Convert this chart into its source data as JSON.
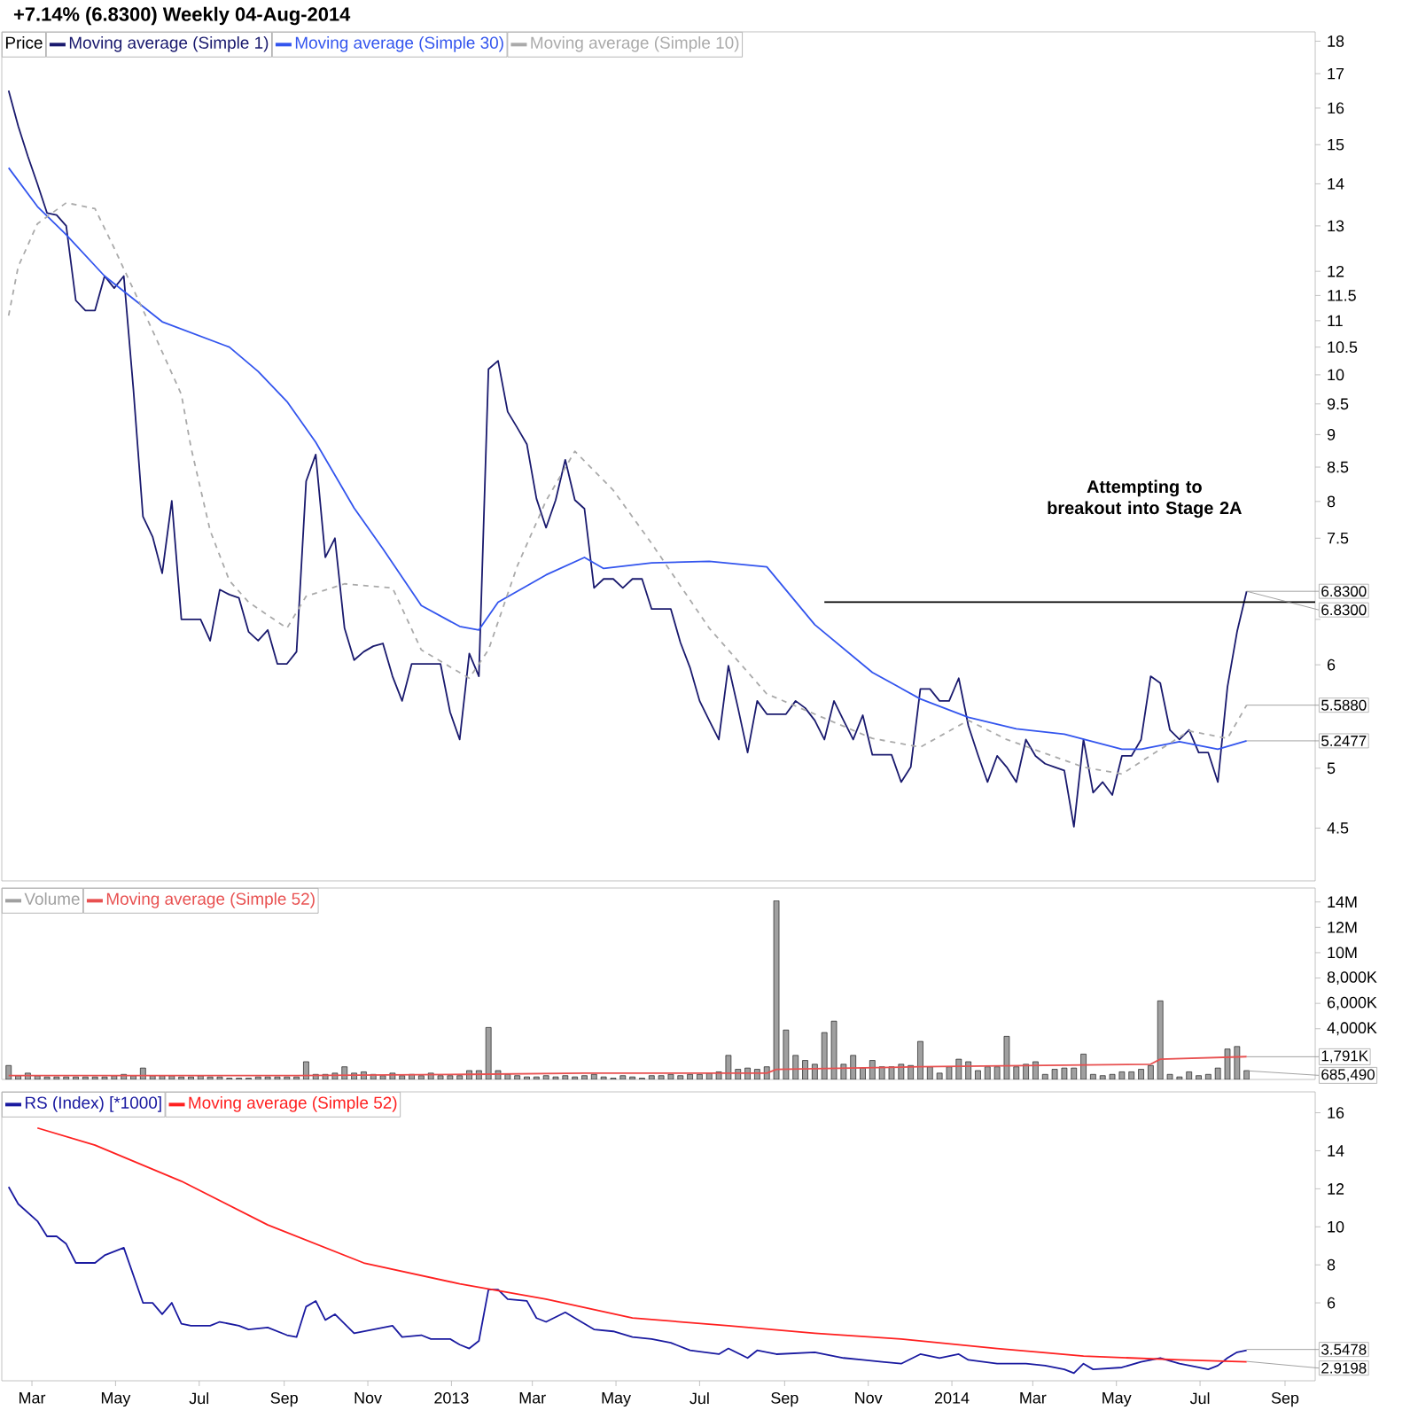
{
  "chart_data": [
    {
      "type": "line",
      "title": "+7.14% (6.8300)   Weekly   04-Aug-2014",
      "legend_title": "Price",
      "legend": "top left",
      "log": "y",
      "tick_labels": "y",
      "x": [
        "2012-02-13",
        "2012-02-20",
        "2012-02-27",
        "2012-03-05",
        "2012-03-12",
        "2012-03-19",
        "2012-03-26",
        "2012-04-02",
        "2012-04-09",
        "2012-04-16",
        "2012-04-23",
        "2012-04-30",
        "2012-05-07",
        "2012-05-14",
        "2012-05-21",
        "2012-05-28",
        "2012-06-04",
        "2012-06-11",
        "2012-06-18",
        "2012-06-25",
        "2012-07-02",
        "2012-07-09",
        "2012-07-16",
        "2012-07-23",
        "2012-07-30",
        "2012-08-06",
        "2012-08-13",
        "2012-08-20",
        "2012-08-27",
        "2012-09-03",
        "2012-09-10",
        "2012-09-17",
        "2012-09-24",
        "2012-10-01",
        "2012-10-08",
        "2012-10-15",
        "2012-10-22",
        "2012-10-29",
        "2012-11-05",
        "2012-11-12",
        "2012-11-19",
        "2012-11-26",
        "2012-12-03",
        "2012-12-10",
        "2012-12-17",
        "2012-12-24",
        "2012-12-31",
        "2013-01-07",
        "2013-01-14",
        "2013-01-21",
        "2013-01-28",
        "2013-02-04",
        "2013-02-11",
        "2013-02-18",
        "2013-02-25",
        "2013-03-04",
        "2013-03-11",
        "2013-03-18",
        "2013-03-25",
        "2013-04-01",
        "2013-04-08",
        "2013-04-15",
        "2013-04-22",
        "2013-04-29",
        "2013-05-06",
        "2013-05-13",
        "2013-05-20",
        "2013-05-27",
        "2013-06-03",
        "2013-06-10",
        "2013-06-17",
        "2013-06-24",
        "2013-07-01",
        "2013-07-08",
        "2013-07-15",
        "2013-07-22",
        "2013-07-29",
        "2013-08-05",
        "2013-08-12",
        "2013-08-19",
        "2013-08-26",
        "2013-09-02",
        "2013-09-09",
        "2013-09-16",
        "2013-09-23",
        "2013-09-30",
        "2013-10-07",
        "2013-10-14",
        "2013-10-21",
        "2013-10-28",
        "2013-11-04",
        "2013-11-11",
        "2013-11-18",
        "2013-11-25",
        "2013-12-02",
        "2013-12-09",
        "2013-12-16",
        "2013-12-23",
        "2013-12-30",
        "2014-01-06",
        "2014-01-13",
        "2014-01-20",
        "2014-01-27",
        "2014-02-03",
        "2014-02-10",
        "2014-02-17",
        "2014-02-24",
        "2014-03-03",
        "2014-03-10",
        "2014-03-17",
        "2014-03-24",
        "2014-03-31",
        "2014-04-07",
        "2014-04-14",
        "2014-04-21",
        "2014-04-28",
        "2014-05-05",
        "2014-05-12",
        "2014-05-19",
        "2014-05-26",
        "2014-06-02",
        "2014-06-09",
        "2014-06-16",
        "2014-06-23",
        "2014-06-30",
        "2014-07-07",
        "2014-07-14",
        "2014-07-21",
        "2014-07-28",
        "2014-08-04"
      ],
      "series": [
        {
          "name": "Moving average (Simple 1)",
          "color": "#1a1a6e",
          "values": [
            16.5,
            15.5,
            14.7,
            14.0,
            13.3,
            13.25,
            13.0,
            11.4,
            11.2,
            11.2,
            11.9,
            11.65,
            11.9,
            9.75,
            7.79,
            7.52,
            7.05,
            8.01,
            6.5,
            6.5,
            6.5,
            6.26,
            6.85,
            6.79,
            6.75,
            6.36,
            6.26,
            6.38,
            6.01,
            6.01,
            6.14,
            8.29,
            8.69,
            7.25,
            7.5,
            6.4,
            6.05,
            6.14,
            6.2,
            6.23,
            5.88,
            5.63,
            6.01,
            6.01,
            6.01,
            6.01,
            5.52,
            5.26,
            6.12,
            5.88,
            10.1,
            10.25,
            9.37,
            9.11,
            8.85,
            8.04,
            7.64,
            8.02,
            8.61,
            8.02,
            7.9,
            6.87,
            6.98,
            6.98,
            6.87,
            6.98,
            6.98,
            6.62,
            6.62,
            6.62,
            6.24,
            5.97,
            5.63,
            5.44,
            5.26,
            5.99,
            5.56,
            5.14,
            5.63,
            5.5,
            5.5,
            5.5,
            5.63,
            5.56,
            5.44,
            5.26,
            5.63,
            5.44,
            5.26,
            5.49,
            5.12,
            5.12,
            5.12,
            4.88,
            5.01,
            5.75,
            5.75,
            5.63,
            5.63,
            5.86,
            5.39,
            5.12,
            4.88,
            5.11,
            5.01,
            4.88,
            5.26,
            5.11,
            5.04,
            5.01,
            4.98,
            4.51,
            5.26,
            4.79,
            4.88,
            4.77,
            5.11,
            5.11,
            5.26,
            5.88,
            5.81,
            5.35,
            5.26,
            5.35,
            5.14,
            5.14,
            4.88,
            5.77,
            6.36,
            6.83
          ]
        },
        {
          "name": "Moving average (Simple 30)",
          "color": "#3355ee",
          "x": [
            "2012-02-13",
            "2012-03-05",
            "2012-03-26",
            "2012-04-23",
            "2012-06-04",
            "2012-07-23",
            "2012-08-13",
            "2012-09-03",
            "2012-09-24",
            "2012-10-22",
            "2012-11-12",
            "2012-12-10",
            "2013-01-07",
            "2013-01-21",
            "2013-02-04",
            "2013-03-11",
            "2013-04-08",
            "2013-04-22",
            "2013-05-27",
            "2013-07-08",
            "2013-08-19",
            "2013-09-23",
            "2013-11-04",
            "2013-12-09",
            "2014-01-13",
            "2014-02-17",
            "2014-03-24",
            "2014-05-05",
            "2014-05-19",
            "2014-06-16",
            "2014-07-14",
            "2014-08-04"
          ],
          "values": [
            14.4,
            13.45,
            12.8,
            11.9,
            10.98,
            10.5,
            10.06,
            9.54,
            8.88,
            7.91,
            7.36,
            6.66,
            6.42,
            6.38,
            6.7,
            7.03,
            7.25,
            7.11,
            7.18,
            7.2,
            7.13,
            6.44,
            5.92,
            5.65,
            5.47,
            5.36,
            5.31,
            5.17,
            5.17,
            5.24,
            5.17,
            5.2477
          ]
        },
        {
          "name": "Moving average (Simple 10)",
          "color": "#aaaaaa",
          "line_style": "dashed",
          "x": [
            "2012-02-13",
            "2012-02-20",
            "2012-03-05",
            "2012-03-26",
            "2012-04-16",
            "2012-04-30",
            "2012-05-28",
            "2012-06-18",
            "2012-06-25",
            "2012-07-09",
            "2012-07-23",
            "2012-08-06",
            "2012-09-03",
            "2012-09-17",
            "2012-10-15",
            "2012-11-19",
            "2012-12-10",
            "2013-01-14",
            "2013-01-28",
            "2013-02-18",
            "2013-03-11",
            "2013-04-01",
            "2013-04-29",
            "2013-05-27",
            "2013-07-08",
            "2013-08-19",
            "2013-11-04",
            "2013-12-09",
            "2014-01-13",
            "2014-02-10",
            "2014-04-07",
            "2014-05-05",
            "2014-06-23",
            "2014-07-21",
            "2014-08-04"
          ],
          "values": [
            11.1,
            12.1,
            13.05,
            13.54,
            13.4,
            12.5,
            10.81,
            9.66,
            8.8,
            7.6,
            6.96,
            6.7,
            6.4,
            6.77,
            6.92,
            6.87,
            6.16,
            5.86,
            6.16,
            7.14,
            8.01,
            8.74,
            8.16,
            7.43,
            6.4,
            5.7,
            5.27,
            5.19,
            5.44,
            5.26,
            5.01,
            4.95,
            5.34,
            5.27,
            5.588
          ]
        },
        {
          "color": "#000000",
          "x": [
            "2013-09-30",
            "2014-09-23"
          ],
          "values": [
            6.7,
            6.7
          ]
        }
      ],
      "xlim": [
        "2012-02-08",
        "2014-09-23"
      ],
      "ylim": [
        4.1,
        18.3
      ],
      "yticks": [
        18,
        17,
        16,
        15,
        14,
        13,
        12,
        11.5,
        11,
        10.5,
        10,
        9.5,
        9,
        8.5,
        8,
        7.5,
        {
          "value": 6.5,
          "label": null
        },
        6,
        5,
        4.5
      ],
      "annotations": [
        "Attempting to breakout into Stage 2A",
        {
          "text": "6.8300",
          "x": "2014-08-04",
          "y": 6.83
        },
        {
          "text": "6.8300",
          "x": "2014-08-04",
          "y": 6.83
        },
        {
          "text": "5.5880",
          "x": "2014-08-04",
          "y": 5.588
        },
        {
          "text": "5.2477",
          "x": "2014-08-04",
          "y": 5.2477
        }
      ]
    },
    {
      "type": "bar",
      "legend": "top left",
      "tick_labels": "y",
      "x": [
        "2012-02-13",
        "2012-02-20",
        "2012-02-27",
        "2012-03-05",
        "2012-03-12",
        "2012-03-19",
        "2012-03-26",
        "2012-04-02",
        "2012-04-09",
        "2012-04-16",
        "2012-04-23",
        "2012-04-30",
        "2012-05-07",
        "2012-05-14",
        "2012-05-21",
        "2012-05-28",
        "2012-06-04",
        "2012-06-11",
        "2012-06-18",
        "2012-06-25",
        "2012-07-02",
        "2012-07-09",
        "2012-07-16",
        "2012-07-23",
        "2012-07-30",
        "2012-08-06",
        "2012-08-13",
        "2012-08-20",
        "2012-08-27",
        "2012-09-03",
        "2012-09-10",
        "2012-09-17",
        "2012-09-24",
        "2012-10-01",
        "2012-10-08",
        "2012-10-15",
        "2012-10-22",
        "2012-10-29",
        "2012-11-05",
        "2012-11-12",
        "2012-11-19",
        "2012-11-26",
        "2012-12-03",
        "2012-12-10",
        "2012-12-17",
        "2012-12-24",
        "2012-12-31",
        "2013-01-07",
        "2013-01-14",
        "2013-01-21",
        "2013-01-28",
        "2013-02-04",
        "2013-02-11",
        "2013-02-18",
        "2013-02-25",
        "2013-03-04",
        "2013-03-11",
        "2013-03-18",
        "2013-03-25",
        "2013-04-01",
        "2013-04-08",
        "2013-04-15",
        "2013-04-22",
        "2013-04-29",
        "2013-05-06",
        "2013-05-13",
        "2013-05-20",
        "2013-05-27",
        "2013-06-03",
        "2013-06-10",
        "2013-06-17",
        "2013-06-24",
        "2013-07-01",
        "2013-07-08",
        "2013-07-15",
        "2013-07-22",
        "2013-07-29",
        "2013-08-05",
        "2013-08-12",
        "2013-08-19",
        "2013-08-26",
        "2013-09-02",
        "2013-09-09",
        "2013-09-16",
        "2013-09-23",
        "2013-09-30",
        "2013-10-07",
        "2013-10-14",
        "2013-10-21",
        "2013-10-28",
        "2013-11-04",
        "2013-11-11",
        "2013-11-18",
        "2013-11-25",
        "2013-12-02",
        "2013-12-09",
        "2013-12-16",
        "2013-12-23",
        "2013-12-30",
        "2014-01-06",
        "2014-01-13",
        "2014-01-20",
        "2014-01-27",
        "2014-02-03",
        "2014-02-10",
        "2014-02-17",
        "2014-02-24",
        "2014-03-03",
        "2014-03-10",
        "2014-03-17",
        "2014-03-24",
        "2014-03-31",
        "2014-04-07",
        "2014-04-14",
        "2014-04-21",
        "2014-04-28",
        "2014-05-05",
        "2014-05-12",
        "2014-05-19",
        "2014-05-26",
        "2014-06-02",
        "2014-06-09",
        "2014-06-16",
        "2014-06-23",
        "2014-06-30",
        "2014-07-07",
        "2014-07-14",
        "2014-07-21",
        "2014-07-28",
        "2014-08-04"
      ],
      "series": [
        {
          "name": "Volume",
          "color": "#a0a0a0",
          "values": [
            1100000,
            300000,
            500000,
            300000,
            200000,
            200000,
            200000,
            200000,
            200000,
            200000,
            200000,
            300000,
            400000,
            300000,
            900000,
            300000,
            300000,
            300000,
            200000,
            200000,
            300000,
            200000,
            200000,
            100000,
            100000,
            100000,
            200000,
            200000,
            200000,
            200000,
            200000,
            1400000,
            400000,
            400000,
            500000,
            1000000,
            500000,
            600000,
            400000,
            300000,
            500000,
            300000,
            400000,
            300000,
            500000,
            300000,
            300000,
            300000,
            700000,
            700000,
            4100000,
            700000,
            400000,
            300000,
            200000,
            200000,
            300000,
            200000,
            300000,
            200000,
            300000,
            400000,
            200000,
            100000,
            300000,
            200000,
            100000,
            300000,
            300000,
            400000,
            300000,
            400000,
            400000,
            500000,
            600000,
            1900000,
            800000,
            900000,
            800000,
            1000000,
            14100000,
            3900000,
            1900000,
            1500000,
            1200000,
            3700000,
            4600000,
            1200000,
            1900000,
            900000,
            1500000,
            1000000,
            1000000,
            1200000,
            1100000,
            3000000,
            1000000,
            500000,
            1000000,
            1600000,
            1400000,
            700000,
            1000000,
            1000000,
            3400000,
            1000000,
            1200000,
            1400000,
            400000,
            800000,
            900000,
            900000,
            2000000,
            400000,
            300000,
            400000,
            600000,
            600000,
            800000,
            1100000,
            6200000,
            400000,
            200000,
            600000,
            300000,
            400000,
            900000,
            2400000,
            2600000,
            700000
          ]
        },
        {
          "name": "Moving average (Simple 52)",
          "type": "line",
          "color": "#e85050",
          "x": [
            "2012-02-13",
            "2012-09-10",
            "2013-01-14",
            "2013-04-08",
            "2013-08-19",
            "2013-08-26",
            "2013-12-09",
            "2014-05-26",
            "2014-06-02",
            "2014-08-04"
          ],
          "values": [
            300000,
            300000,
            400000,
            500000,
            500000,
            800000,
            1000000,
            1200000,
            1600000,
            1800000
          ]
        }
      ],
      "xlim": [
        "2012-02-08",
        "2014-09-23"
      ],
      "ylim": [
        0,
        15100000
      ],
      "yticks": [
        {
          "value": 14000000,
          "label": "14M"
        },
        {
          "value": 12000000,
          "label": "12M"
        },
        {
          "value": 10000000,
          "label": "10M"
        },
        {
          "value": 8000000,
          "label": "8,000K"
        },
        {
          "value": 6000000,
          "label": "6,000K"
        },
        {
          "value": 4000000,
          "label": "4,000K"
        }
      ],
      "annotations": [
        {
          "text": "1,791K",
          "x": "2014-08-04",
          "y": 1791000
        },
        {
          "text": "685,490",
          "x": "2014-08-04",
          "y": 685490
        }
      ]
    },
    {
      "type": "line",
      "legend": "top left",
      "series": [
        {
          "name": "RS (Index) [*1000]",
          "color": "#1a1aa0",
          "x": [
            "2012-02-13",
            "2012-02-20",
            "2012-03-05",
            "2012-03-12",
            "2012-03-19",
            "2012-03-26",
            "2012-04-02",
            "2012-04-16",
            "2012-04-23",
            "2012-05-07",
            "2012-05-21",
            "2012-05-28",
            "2012-06-04",
            "2012-06-11",
            "2012-06-18",
            "2012-06-25",
            "2012-07-09",
            "2012-07-16",
            "2012-07-30",
            "2012-08-06",
            "2012-08-20",
            "2012-09-03",
            "2012-09-10",
            "2012-09-17",
            "2012-09-24",
            "2012-10-01",
            "2012-10-08",
            "2012-10-22",
            "2012-11-05",
            "2012-11-19",
            "2012-11-26",
            "2012-12-10",
            "2012-12-17",
            "2012-12-31",
            "2013-01-07",
            "2013-01-14",
            "2013-01-21",
            "2013-01-28",
            "2013-02-04",
            "2013-02-11",
            "2013-02-25",
            "2013-03-04",
            "2013-03-11",
            "2013-03-25",
            "2013-04-01",
            "2013-04-15",
            "2013-04-29",
            "2013-05-13",
            "2013-05-27",
            "2013-06-10",
            "2013-06-24",
            "2013-07-15",
            "2013-07-22",
            "2013-08-05",
            "2013-08-12",
            "2013-08-26",
            "2013-09-23",
            "2013-10-14",
            "2013-10-28",
            "2013-11-11",
            "2013-11-25",
            "2013-12-09",
            "2013-12-23",
            "2014-01-06",
            "2014-01-13",
            "2014-02-03",
            "2014-02-24",
            "2014-03-10",
            "2014-03-24",
            "2014-03-31",
            "2014-04-07",
            "2014-04-14",
            "2014-05-05",
            "2014-05-19",
            "2014-06-02",
            "2014-06-16",
            "2014-06-30",
            "2014-07-07",
            "2014-07-14",
            "2014-07-21",
            "2014-07-28",
            "2014-08-04"
          ],
          "values": [
            12.1,
            11.2,
            10.3,
            9.5,
            9.5,
            9.1,
            8.1,
            8.1,
            8.5,
            8.9,
            6.0,
            6.0,
            5.4,
            6.0,
            4.9,
            4.8,
            4.8,
            5.0,
            4.8,
            4.6,
            4.7,
            4.3,
            4.2,
            5.8,
            6.1,
            5.1,
            5.4,
            4.4,
            4.6,
            4.8,
            4.2,
            4.3,
            4.1,
            4.1,
            3.8,
            3.6,
            4.0,
            6.7,
            6.7,
            6.2,
            6.1,
            5.2,
            5.0,
            5.5,
            5.2,
            4.6,
            4.5,
            4.2,
            4.1,
            3.9,
            3.5,
            3.3,
            3.6,
            3.1,
            3.5,
            3.3,
            3.4,
            3.1,
            3.0,
            2.9,
            2.8,
            3.3,
            3.1,
            3.3,
            3.0,
            2.8,
            2.8,
            2.7,
            2.5,
            2.3,
            2.8,
            2.5,
            2.6,
            2.9,
            3.1,
            2.8,
            2.6,
            2.5,
            2.7,
            3.1,
            3.4,
            3.5
          ]
        },
        {
          "name": "Moving average (Simple 52)",
          "color": "#ff2020",
          "x": [
            "2012-03-05",
            "2012-04-16",
            "2012-06-18",
            "2012-08-20",
            "2012-10-29",
            "2013-01-07",
            "2013-03-11",
            "2013-05-13",
            "2013-07-22",
            "2013-09-23",
            "2013-11-25",
            "2014-02-03",
            "2014-04-07",
            "2014-06-16",
            "2014-08-04"
          ],
          "values": [
            15.2,
            14.3,
            12.4,
            10.1,
            8.1,
            7.0,
            6.2,
            5.2,
            4.8,
            4.4,
            4.1,
            3.6,
            3.2,
            3.0,
            2.9
          ]
        }
      ],
      "xlim": [
        "2012-02-08",
        "2014-09-23"
      ],
      "ylim": [
        1.9,
        17.1
      ],
      "xticks": [
        {
          "value": "2012-03-01",
          "label": "Mar"
        },
        {
          "value": "2012-05-01",
          "label": "May"
        },
        {
          "value": "2012-07-01",
          "label": "Jul"
        },
        {
          "value": "2012-09-01",
          "label": "Sep"
        },
        {
          "value": "2012-11-01",
          "label": "Nov"
        },
        {
          "value": "2013-01-01",
          "label": "2013"
        },
        {
          "value": "2013-03-01",
          "label": "Mar"
        },
        {
          "value": "2013-05-01",
          "label": "May"
        },
        {
          "value": "2013-07-01",
          "label": "Jul"
        },
        {
          "value": "2013-09-01",
          "label": "Sep"
        },
        {
          "value": "2013-11-01",
          "label": "Nov"
        },
        {
          "value": "2014-01-01",
          "label": "2014"
        },
        {
          "value": "2014-03-01",
          "label": "Mar"
        },
        {
          "value": "2014-05-01",
          "label": "May"
        },
        {
          "value": "2014-07-01",
          "label": "Jul"
        },
        {
          "value": "2014-09-01",
          "label": "Sep"
        }
      ],
      "yticks": [
        16,
        14,
        12,
        10,
        8,
        6
      ],
      "annotations": [
        {
          "text": "3.5478",
          "x": "2014-08-04",
          "y": 3.5478
        },
        {
          "text": "2.9198",
          "x": "2014-08-04",
          "y": 2.9198
        }
      ]
    }
  ]
}
